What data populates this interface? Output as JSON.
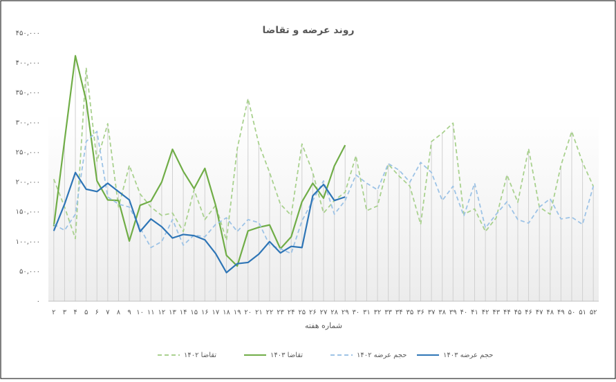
{
  "chart_data": {
    "type": "line",
    "title": "روند عرضه و تقاضا",
    "x_label": "شماره هفته",
    "categories": [
      "۲",
      "۳",
      "۴",
      "۵",
      "۶",
      "۷",
      "۸",
      "۹",
      "۱۰",
      "۱۱",
      "۱۲",
      "۱۳",
      "۱۴",
      "۱۵",
      "۱۶",
      "۱۷",
      "۱۸",
      "۱۹",
      "۲۰",
      "۲۱",
      "۲۲",
      "۲۳",
      "۲۴",
      "۲۵",
      "۲۶",
      "۲۷",
      "۲۸",
      "۲۹",
      "۳۰",
      "۳۱",
      "۳۲",
      "۳۳",
      "۳۴",
      "۳۵",
      "۳۶",
      "۳۷",
      "۳۸",
      "۳۹",
      "۴۰",
      "۴۱",
      "۴۲",
      "۴۳",
      "۴۴",
      "۴۵",
      "۴۶",
      "۴۷",
      "۴۸",
      "۴۹",
      "۵۰",
      "۵۱",
      "۵۲"
    ],
    "series": [
      {
        "name": "تقاضا ۱۴۰۲",
        "color": "#a9d18e",
        "dashed": true,
        "values": [
          205000,
          158000,
          105000,
          392000,
          235000,
          298000,
          158000,
          228000,
          180000,
          158000,
          144000,
          148000,
          117000,
          187000,
          137000,
          161000,
          102000,
          256000,
          340000,
          264000,
          216000,
          163000,
          144000,
          264000,
          216000,
          148000,
          169000,
          183000,
          244000,
          152000,
          160000,
          230000,
          210000,
          193000,
          129000,
          268000,
          282000,
          299000,
          146000,
          155000,
          117000,
          140000,
          212000,
          166000,
          256000,
          158000,
          146000,
          228000,
          285000,
          233000,
          193000
        ]
      },
      {
        "name": "تقاضا ۱۴۰۳",
        "color": "#70ad47",
        "dashed": false,
        "values": [
          126000,
          270000,
          412000,
          337000,
          202000,
          170000,
          169000,
          101000,
          161000,
          168000,
          200000,
          255000,
          218000,
          189000,
          223000,
          161000,
          77000,
          59000,
          118000,
          124000,
          128000,
          88000,
          108000,
          167000,
          198000,
          173000,
          227000,
          262000,
          null,
          null,
          null,
          null,
          null,
          null,
          null,
          null,
          null,
          null,
          null,
          null,
          null,
          null,
          null,
          null,
          null,
          null,
          null,
          null,
          null,
          null,
          null
        ]
      },
      {
        "name": "حجم عرضه ۱۴۰۲",
        "color": "#9dc3e6",
        "dashed": true,
        "values": [
          129000,
          119000,
          146000,
          268000,
          285000,
          175000,
          163000,
          158000,
          123000,
          90000,
          100000,
          137000,
          94000,
          111000,
          108000,
          129000,
          140000,
          117000,
          137000,
          132000,
          94000,
          88000,
          80000,
          135000,
          169000,
          202000,
          146000,
          169000,
          212000,
          198000,
          187000,
          231000,
          220000,
          200000,
          233000,
          216000,
          169000,
          193000,
          143000,
          198000,
          123000,
          146000,
          167000,
          137000,
          131000,
          158000,
          172000,
          138000,
          141000,
          129000,
          193000
        ]
      },
      {
        "name": "حجم عرضه ۱۴۰۳",
        "color": "#2e75b6",
        "dashed": false,
        "values": [
          118000,
          163000,
          216000,
          188000,
          184000,
          198000,
          184000,
          170000,
          117000,
          138000,
          125000,
          106000,
          112000,
          110000,
          103000,
          80000,
          48000,
          63000,
          65000,
          79000,
          100000,
          81000,
          92000,
          90000,
          177000,
          196000,
          169000,
          175000,
          null,
          null,
          null,
          null,
          null,
          null,
          null,
          null,
          null,
          null,
          null,
          null,
          null,
          null,
          null,
          null,
          null,
          null,
          null,
          null,
          null,
          null,
          null
        ]
      }
    ],
    "ylim": [
      0,
      450000
    ],
    "yticks": [
      {
        "value": 0,
        "label": "۰"
      },
      {
        "value": 50000,
        "label": "۵۰,۰۰۰"
      },
      {
        "value": 100000,
        "label": "۱۰۰,۰۰۰"
      },
      {
        "value": 150000,
        "label": "۱۵۰,۰۰۰"
      },
      {
        "value": 200000,
        "label": "۲۰۰,۰۰۰"
      },
      {
        "value": 250000,
        "label": "۲۵۰,۰۰۰"
      },
      {
        "value": 300000,
        "label": "۳۰۰,۰۰۰"
      },
      {
        "value": 350000,
        "label": "۳۵۰,۰۰۰"
      },
      {
        "value": 400000,
        "label": "۴۰۰,۰۰۰"
      },
      {
        "value": 450000,
        "label": "۴۵۰,۰۰۰"
      }
    ],
    "legend": "bottom"
  }
}
